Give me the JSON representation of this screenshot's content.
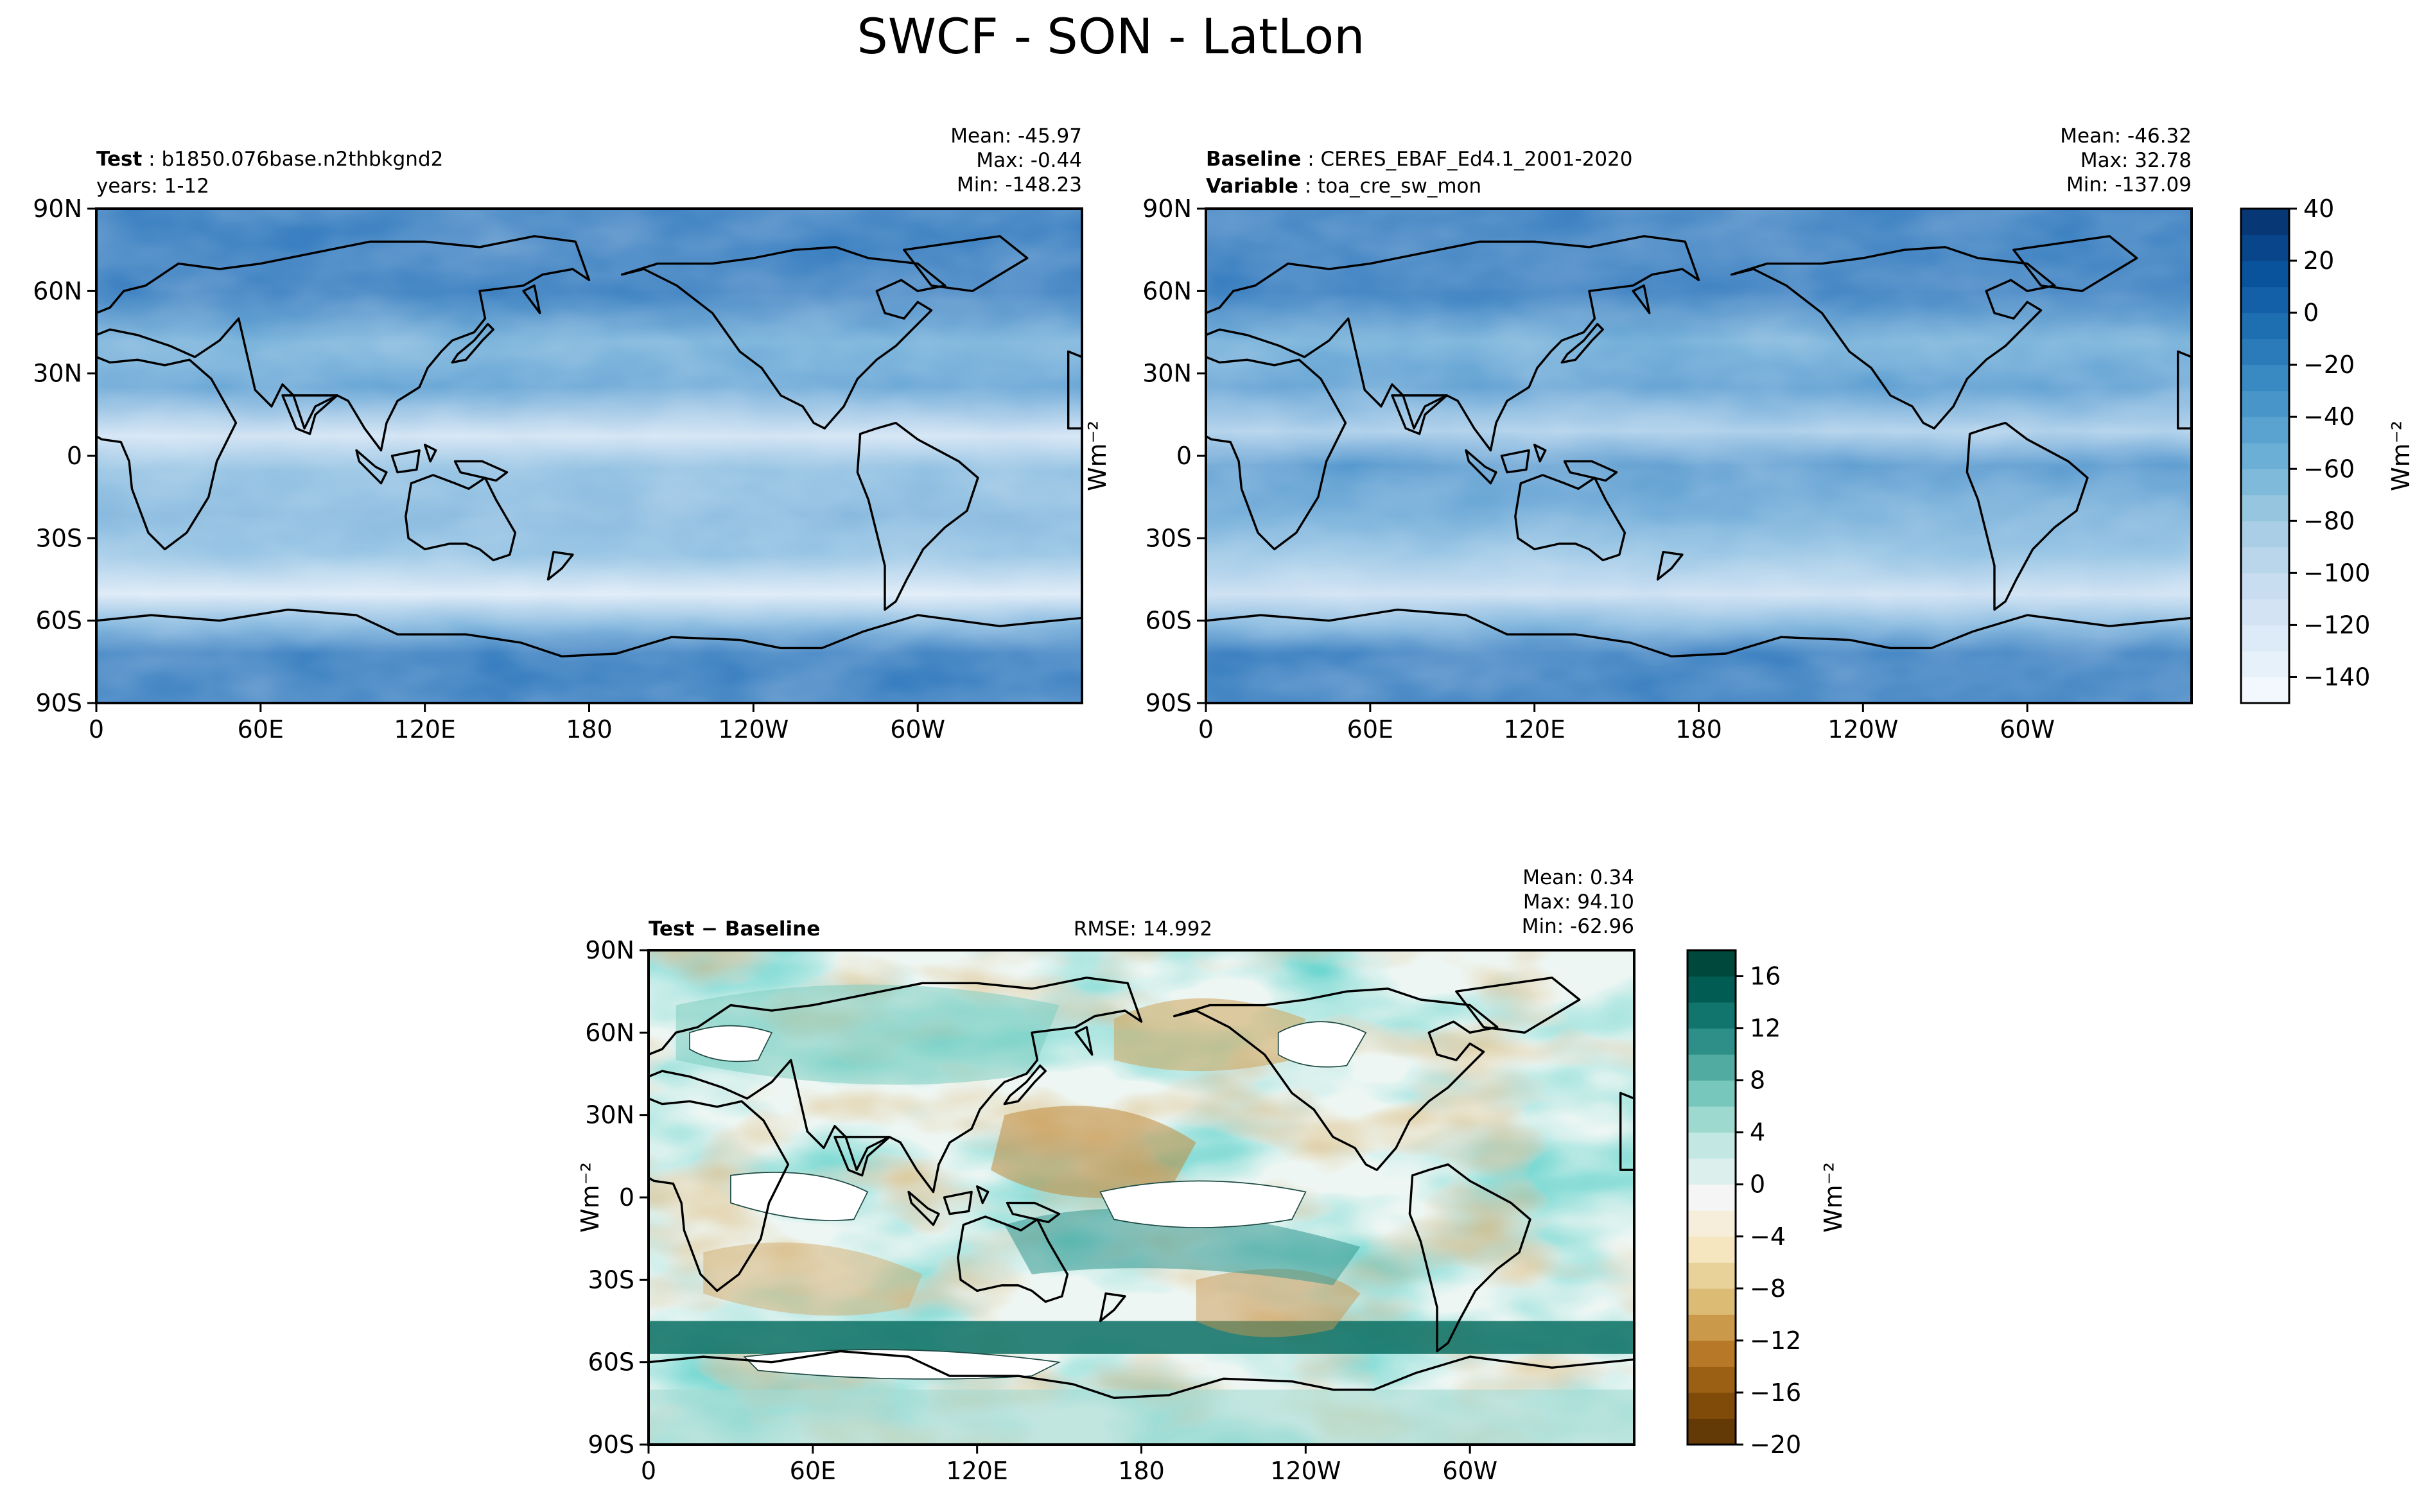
{
  "figure": {
    "title": "SWCF - SON - LatLon"
  },
  "colors": {
    "reference_cmap": [
      "#f7fbff",
      "#deebf7",
      "#c6dbef",
      "#9ecae1",
      "#6baed6",
      "#4292c6",
      "#2171b5",
      "#08519c",
      "#08306b"
    ],
    "diff_cmap": [
      "#543005",
      "#8c510a",
      "#bf812d",
      "#dfc27d",
      "#f6e8c3",
      "#f5f5f5",
      "#c7eae5",
      "#80cdc1",
      "#35978f",
      "#01665e",
      "#003c30"
    ],
    "coastline": "#000000"
  },
  "panels": {
    "test": {
      "label_bold": "Test",
      "label_text": "b1850.076base.n2thbkgnd2",
      "line2_text": "years: 1-12",
      "stats": [
        "Mean: -45.97",
        "Max: -0.44",
        "Min: -148.23"
      ]
    },
    "baseline": {
      "label_bold": "Baseline",
      "label_text": "CERES_EBAF_Ed4.1_2001-2020",
      "line2_bold": "Variable",
      "line2_text": "toa_cre_sw_mon",
      "stats": [
        "Mean: -46.32",
        "Max: 32.78",
        "Min: -137.09"
      ]
    },
    "diff": {
      "label": "Test − Baseline",
      "rmse": "RMSE: 14.992",
      "stats": [
        "Mean:  0.34",
        "Max: 94.10",
        "Min: -62.96"
      ]
    }
  },
  "colorbars": {
    "main": {
      "ticks": [
        "40",
        "20",
        "0",
        "−20",
        "−40",
        "−60",
        "−80",
        "−100",
        "−120",
        "−140"
      ],
      "unit": "Wm⁻²"
    },
    "diff": {
      "ticks": [
        "16",
        "12",
        "8",
        "4",
        "0",
        "−4",
        "−8",
        "−12",
        "−16",
        "−20"
      ],
      "unit": "Wm⁻²"
    }
  },
  "chart_data": [
    {
      "type": "heatmap",
      "panel": "Test",
      "projection": "PlateCarree (longitude 0 to 360)",
      "xticks": [
        "0",
        "60E",
        "120E",
        "180",
        "120W",
        "60W"
      ],
      "yticks": [
        "90N",
        "60N",
        "30N",
        "0",
        "30S",
        "60S",
        "90S"
      ],
      "xlim": [
        0,
        360
      ],
      "ylim": [
        -90,
        90
      ],
      "ylabel": "Wm⁻²",
      "stats": {
        "mean": -45.97,
        "max": -0.44,
        "min": -148.23
      },
      "zonal_profile_estimate": {
        "lat": [
          90,
          60,
          40,
          20,
          10,
          0,
          -15,
          -30,
          -45,
          -55,
          -65,
          -75,
          -90
        ],
        "value": [
          -40,
          -40,
          -70,
          -60,
          -80,
          -95,
          -90,
          -75,
          -80,
          -110,
          -85,
          -25,
          -20
        ]
      }
    },
    {
      "type": "heatmap",
      "panel": "Baseline",
      "projection": "PlateCarree (longitude 0 to 360)",
      "xticks": [
        "0",
        "60E",
        "120E",
        "180",
        "120W",
        "60W"
      ],
      "yticks": [
        "90N",
        "60N",
        "30N",
        "0",
        "30S",
        "60S",
        "90S"
      ],
      "xlim": [
        0,
        360
      ],
      "ylim": [
        -90,
        90
      ],
      "stats": {
        "mean": -46.32,
        "max": 32.78,
        "min": -137.09
      },
      "colorbar": {
        "range": [
          -150,
          40
        ],
        "step": 10,
        "unit": "Wm⁻²"
      },
      "zonal_profile_estimate": {
        "lat": [
          90,
          60,
          40,
          20,
          10,
          0,
          -15,
          -30,
          -45,
          -55,
          -65,
          -75,
          -90
        ],
        "value": [
          -40,
          -45,
          -70,
          -55,
          -85,
          -70,
          -70,
          -70,
          -80,
          -105,
          -80,
          -25,
          -20
        ]
      }
    },
    {
      "type": "heatmap",
      "panel": "Test − Baseline",
      "projection": "PlateCarree (longitude 0 to 360)",
      "xticks": [
        "0",
        "60E",
        "120E",
        "180",
        "120W",
        "60W"
      ],
      "yticks": [
        "90N",
        "60N",
        "30N",
        "0",
        "30S",
        "60S",
        "90S"
      ],
      "xlim": [
        0,
        360
      ],
      "ylim": [
        -90,
        90
      ],
      "ylabel": "Wm⁻²",
      "rmse": 14.992,
      "stats": {
        "mean": 0.34,
        "max": 94.1,
        "min": -62.96
      },
      "colorbar": {
        "range": [
          -20,
          18
        ],
        "step": 2,
        "unit": "Wm⁻²"
      }
    }
  ]
}
